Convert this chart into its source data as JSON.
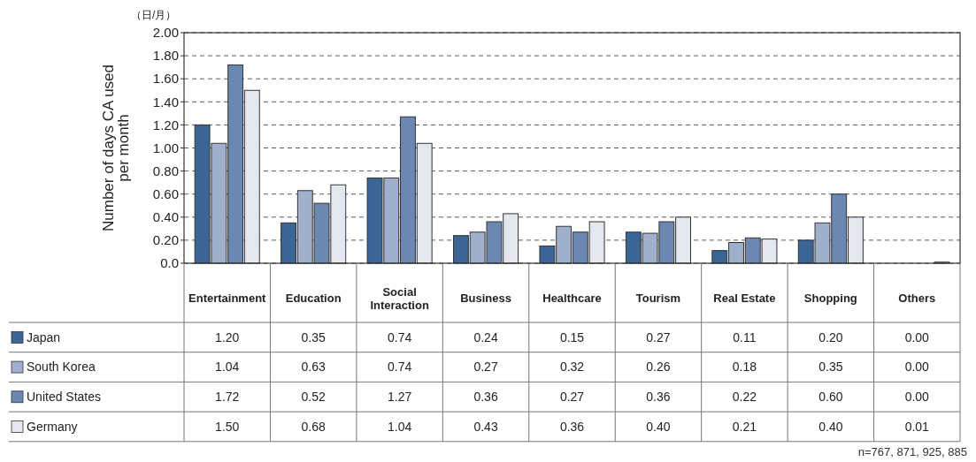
{
  "chart_data": {
    "type": "bar",
    "ylabel": "Number of days CA used per month",
    "categories": [
      "Entertainment",
      "Education",
      "Social Interaction",
      "Business",
      "Healthcare",
      "Tourism",
      "Real Estate",
      "Shopping",
      "Others"
    ],
    "series": [
      {
        "name": "Japan",
        "color": "#3a6595",
        "values": [
          1.2,
          0.35,
          0.74,
          0.24,
          0.15,
          0.27,
          0.11,
          0.2,
          0.0
        ],
        "value_labels": [
          "1.20",
          "0.35",
          "0.74",
          "0.24",
          "0.15",
          "0.27",
          "0.11",
          "0.20",
          "0.00"
        ]
      },
      {
        "name": "South Korea",
        "color": "#a0b0cc",
        "values": [
          1.04,
          0.63,
          0.74,
          0.27,
          0.32,
          0.26,
          0.18,
          0.35,
          0.0
        ],
        "value_labels": [
          "1.04",
          "0.63",
          "0.74",
          "0.27",
          "0.32",
          "0.26",
          "0.18",
          "0.35",
          "0.00"
        ]
      },
      {
        "name": "United States",
        "color": "#6a88b2",
        "values": [
          1.72,
          0.52,
          1.27,
          0.36,
          0.27,
          0.36,
          0.22,
          0.6,
          0.0
        ],
        "value_labels": [
          "1.72",
          "0.52",
          "1.27",
          "0.36",
          "0.27",
          "0.36",
          "0.22",
          "0.60",
          "0.00"
        ]
      },
      {
        "name": "Germany",
        "color": "#e3e7f0",
        "values": [
          1.5,
          0.68,
          1.04,
          0.43,
          0.36,
          0.4,
          0.21,
          0.4,
          0.01
        ],
        "value_labels": [
          "1.50",
          "0.68",
          "1.04",
          "0.43",
          "0.36",
          "0.40",
          "0.21",
          "0.40",
          "0.01"
        ]
      }
    ],
    "ylim": [
      0,
      2
    ],
    "yticks": [
      {
        "value": 0,
        "label": "0.0"
      },
      {
        "value": 0.2,
        "label": "0.20"
      },
      {
        "value": 0.4,
        "label": "0.40"
      },
      {
        "value": 0.6,
        "label": "0.60"
      },
      {
        "value": 0.8,
        "label": "0.80"
      },
      {
        "value": 1.0,
        "label": "1.00"
      },
      {
        "value": 1.2,
        "label": "1.20"
      },
      {
        "value": 1.4,
        "label": "1.40"
      },
      {
        "value": 1.6,
        "label": "1.60"
      },
      {
        "value": 1.8,
        "label": "1.80"
      },
      {
        "value": 2.0,
        "label": "2.00"
      }
    ],
    "grid": "y",
    "legend": "bottom left",
    "annotations": [
      "（日/月）",
      "n=767, 871, 925, 885"
    ]
  }
}
